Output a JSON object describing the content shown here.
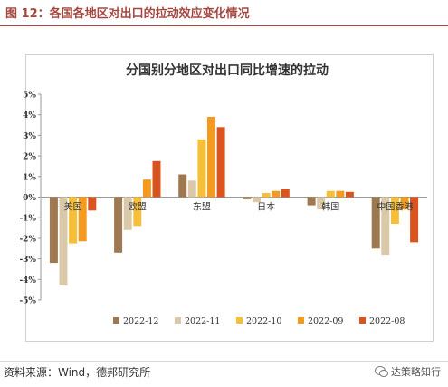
{
  "figure": {
    "title": "图 12：各国各地区对出口的拉动效应变化情况",
    "source": "资料来源：Wind，德邦研究所",
    "watermark": "达策略知行"
  },
  "chart_data": {
    "type": "bar",
    "title": "分国别分地区对出口同比增速的拉动",
    "xlabel": "",
    "ylabel": "",
    "categories": [
      "美国",
      "欧盟",
      "东盟",
      "日本",
      "韩国",
      "中国香港"
    ],
    "y_ticks": [
      "5%",
      "4%",
      "3%",
      "2%",
      "1%",
      "0%",
      "-1%",
      "-2%",
      "-3%",
      "-4%",
      "-5%"
    ],
    "ylim": [
      -5,
      5
    ],
    "grid": false,
    "legend": "bottom",
    "series": [
      {
        "name": "2022-12",
        "color": "#9e7850",
        "values": [
          -3.2,
          -2.7,
          1.1,
          -0.1,
          -0.4,
          -2.5
        ]
      },
      {
        "name": "2022-11",
        "color": "#d9c9a9",
        "values": [
          -4.3,
          -1.6,
          0.8,
          -0.25,
          -0.6,
          -2.8
        ]
      },
      {
        "name": "2022-10",
        "color": "#f5bf3a",
        "values": [
          -2.25,
          -1.4,
          2.8,
          0.2,
          0.3,
          -1.3
        ]
      },
      {
        "name": "2022-09",
        "color": "#f39a1f",
        "values": [
          -2.15,
          0.85,
          3.9,
          0.3,
          0.3,
          -0.6
        ]
      },
      {
        "name": "2022-08",
        "color": "#d9541e",
        "values": [
          -0.65,
          1.75,
          3.4,
          0.4,
          0.25,
          -2.2
        ]
      }
    ]
  }
}
